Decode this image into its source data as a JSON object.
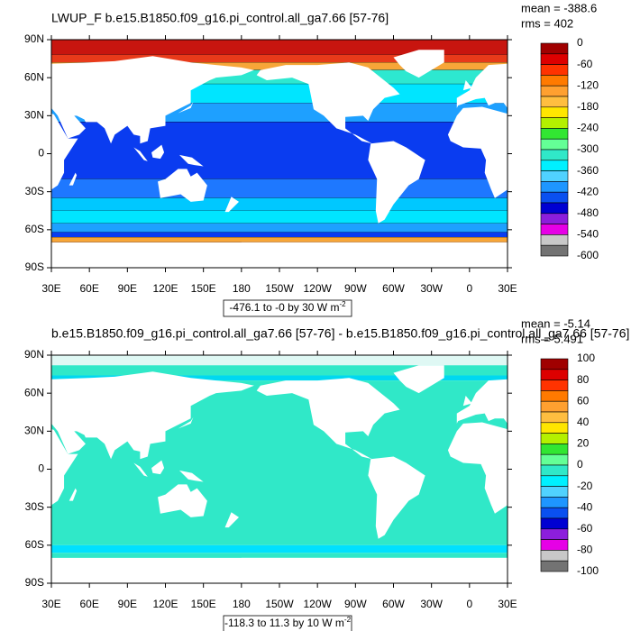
{
  "panels": [
    {
      "title": "LWUP_F b.e15.B1850.f09_g16.pi_control.all_ga7.66 [57-76]",
      "mean_label": "mean = -388.6",
      "rms_label": "rms = 402",
      "contour_info": "-476.1 to -0 by 30  W m",
      "units_exponent": "-2",
      "colorbar": {
        "labels": [
          0,
          -60,
          -120,
          -180,
          -240,
          -300,
          -360,
          -420,
          -480,
          -540,
          -600
        ],
        "colors": [
          "#a00000",
          "#dd0000",
          "#ff3300",
          "#ff7a00",
          "#ffa030",
          "#ffbe40",
          "#ffe600",
          "#b4f000",
          "#32e632",
          "#64ff96",
          "#30e8c8",
          "#00f0ff",
          "#50d2ff",
          "#1e96ff",
          "#0a50f0",
          "#0000d2",
          "#8c1edc",
          "#e600e6",
          "#c8c8c8",
          "#737373"
        ]
      }
    },
    {
      "title": "b.e15.B1850.f09_g16.pi_control.all_ga7.66 [57-76] - b.e15.B1850.f09_g16.pi_control.all_ga7.66 [57-76]",
      "mean_label": "mean = -5.14",
      "rms_label": "rms = 5.491",
      "contour_info": "-118.3 to 11.3 by 10  W m",
      "units_exponent": "-2",
      "colorbar": {
        "labels": [
          100,
          80,
          60,
          40,
          20,
          0,
          -20,
          -40,
          -60,
          -80,
          -100
        ],
        "colors": [
          "#a00000",
          "#dd0000",
          "#ff3300",
          "#ff7a00",
          "#ffa030",
          "#ffbe40",
          "#ffe600",
          "#b4f000",
          "#32e632",
          "#64ff96",
          "#30e8c8",
          "#00f0ff",
          "#50d2ff",
          "#1e96ff",
          "#0a50f0",
          "#0000d2",
          "#8c1edc",
          "#e600e6",
          "#c8c8c8",
          "#737373"
        ]
      }
    }
  ],
  "lat_labels": [
    "90N",
    "60N",
    "30N",
    "0",
    "30S",
    "60S",
    "90S"
  ],
  "lon_labels": [
    "30E",
    "60E",
    "90E",
    "120E",
    "150E",
    "180",
    "150W",
    "120W",
    "90W",
    "60W",
    "30W",
    "0",
    "30E"
  ]
}
